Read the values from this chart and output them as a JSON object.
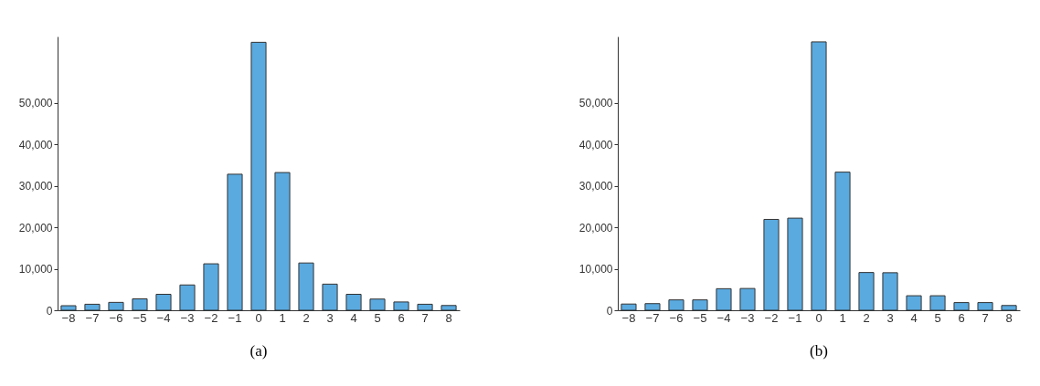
{
  "chart_data": [
    {
      "type": "bar",
      "title": "(a)",
      "categories": [
        "−8",
        "−7",
        "−6",
        "−5",
        "−4",
        "−3",
        "−2",
        "−1",
        "0",
        "1",
        "2",
        "3",
        "4",
        "5",
        "6",
        "7",
        "8"
      ],
      "values": [
        1100,
        1450,
        1900,
        2750,
        3850,
        6100,
        11200,
        32800,
        64600,
        33200,
        11400,
        6300,
        3850,
        2700,
        2000,
        1450,
        1150
      ],
      "color": "#5aaae0",
      "ylim": [
        0,
        66000
      ],
      "yticks": [
        0,
        {
          "value": 10000,
          "label": "10,000"
        },
        {
          "value": 20000,
          "label": "20,000"
        },
        {
          "value": 30000,
          "label": "30,000"
        },
        {
          "value": 40000,
          "label": "40,000"
        },
        {
          "value": 50000,
          "label": "50,000"
        }
      ],
      "grid": false
    },
    {
      "type": "bar",
      "title": "(b)",
      "categories": [
        "−8",
        "−7",
        "−6",
        "−5",
        "−4",
        "−3",
        "−2",
        "−1",
        "0",
        "1",
        "2",
        "3",
        "4",
        "5",
        "6",
        "7",
        "8"
      ],
      "values": [
        1500,
        1600,
        2500,
        2500,
        5200,
        5250,
        21900,
        22200,
        64700,
        33300,
        9100,
        9050,
        3500,
        3500,
        1850,
        1850,
        1150
      ],
      "color": "#5aaae0",
      "ylim": [
        0,
        66000
      ],
      "yticks": [
        0,
        {
          "value": 10000,
          "label": "10,000"
        },
        {
          "value": 20000,
          "label": "20,000"
        },
        {
          "value": 30000,
          "label": "30,000"
        },
        {
          "value": 40000,
          "label": "40,000"
        },
        {
          "value": 50000,
          "label": "50,000"
        }
      ],
      "grid": false
    }
  ]
}
